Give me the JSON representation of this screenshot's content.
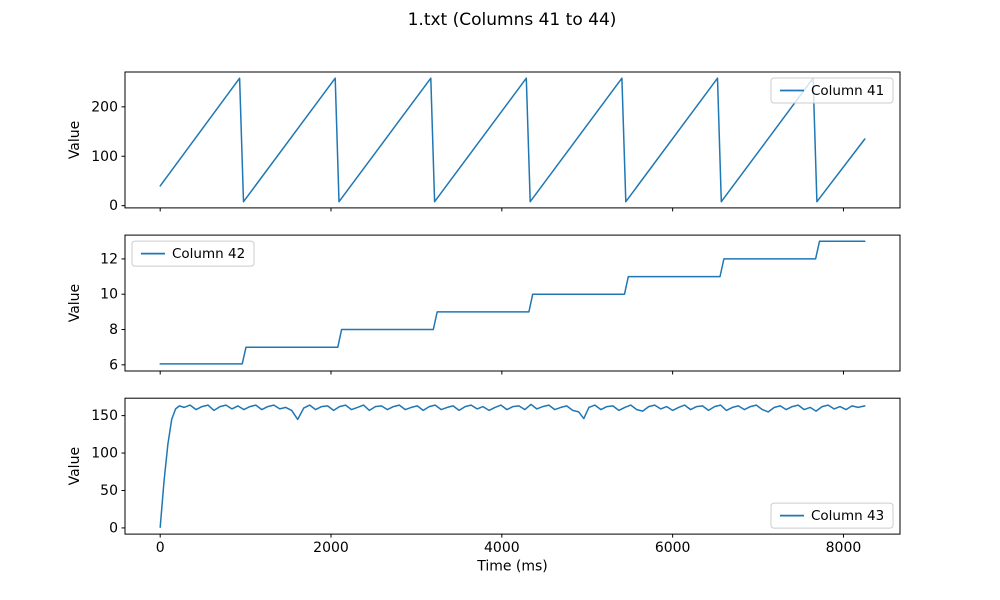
{
  "figure": {
    "title": "1.txt (Columns 41 to 44)",
    "line_color": "#1f77b4",
    "background": "#ffffff",
    "xlabel": "Time (ms)"
  },
  "chart_data": [
    {
      "type": "line",
      "legend": "Column 41",
      "legend_position": "upper-right",
      "ylabel": "Value",
      "xlabel": "",
      "xlim": [
        -412,
        8662
      ],
      "ylim": [
        -4.5,
        270.5
      ],
      "xticks": [
        0,
        2000,
        4000,
        6000,
        8000
      ],
      "show_xtick_labels": false,
      "yticks": [
        0,
        100,
        200
      ],
      "points": [
        [
          0,
          40
        ],
        [
          930,
          258
        ],
        [
          975,
          8
        ],
        [
          2049,
          258
        ],
        [
          2094,
          8
        ],
        [
          3168,
          258
        ],
        [
          3213,
          8
        ],
        [
          4287,
          258
        ],
        [
          4332,
          8
        ],
        [
          5406,
          258
        ],
        [
          5451,
          8
        ],
        [
          6525,
          258
        ],
        [
          6570,
          8
        ],
        [
          7644,
          258
        ],
        [
          7689,
          8
        ],
        [
          8250,
          135
        ]
      ]
    },
    {
      "type": "line",
      "legend": "Column 42",
      "legend_position": "upper-left",
      "ylabel": "Value",
      "xlabel": "",
      "xlim": [
        -412,
        8662
      ],
      "ylim": [
        5.65,
        13.35
      ],
      "xticks": [
        0,
        2000,
        4000,
        6000,
        8000
      ],
      "show_xtick_labels": false,
      "yticks": [
        6,
        8,
        10,
        12
      ],
      "points": [
        [
          0,
          6.05
        ],
        [
          960,
          6.05
        ],
        [
          1005,
          7
        ],
        [
          2079,
          7
        ],
        [
          2124,
          8
        ],
        [
          3198,
          8
        ],
        [
          3243,
          9
        ],
        [
          4317,
          9
        ],
        [
          4362,
          10
        ],
        [
          5436,
          10
        ],
        [
          5481,
          11
        ],
        [
          6555,
          11
        ],
        [
          6600,
          12
        ],
        [
          7674,
          12
        ],
        [
          7719,
          13
        ],
        [
          8250,
          13
        ]
      ]
    },
    {
      "type": "line",
      "legend": "Column 43",
      "legend_position": "lower-right",
      "ylabel": "Value",
      "xlabel": "Time (ms)",
      "xlim": [
        -412,
        8662
      ],
      "ylim": [
        -8.25,
        173.25
      ],
      "xticks": [
        0,
        2000,
        4000,
        6000,
        8000
      ],
      "show_xtick_labels": true,
      "yticks": [
        0,
        50,
        100,
        150
      ],
      "points": [
        [
          0,
          1
        ],
        [
          45,
          62
        ],
        [
          90,
          112
        ],
        [
          135,
          145
        ],
        [
          180,
          159
        ],
        [
          225,
          163
        ],
        [
          280,
          161
        ],
        [
          350,
          164
        ],
        [
          420,
          158
        ],
        [
          490,
          162
        ],
        [
          560,
          164
        ],
        [
          630,
          157
        ],
        [
          700,
          162
        ],
        [
          770,
          164
        ],
        [
          840,
          159
        ],
        [
          910,
          163
        ],
        [
          980,
          158
        ],
        [
          1050,
          162
        ],
        [
          1120,
          164
        ],
        [
          1190,
          158
        ],
        [
          1260,
          162
        ],
        [
          1330,
          164
        ],
        [
          1400,
          159
        ],
        [
          1470,
          161
        ],
        [
          1540,
          157
        ],
        [
          1610,
          145
        ],
        [
          1680,
          160
        ],
        [
          1750,
          164
        ],
        [
          1820,
          158
        ],
        [
          1890,
          162
        ],
        [
          1960,
          163
        ],
        [
          2030,
          157
        ],
        [
          2100,
          162
        ],
        [
          2170,
          164
        ],
        [
          2240,
          158
        ],
        [
          2310,
          161
        ],
        [
          2380,
          164
        ],
        [
          2450,
          157
        ],
        [
          2520,
          162
        ],
        [
          2590,
          163
        ],
        [
          2660,
          158
        ],
        [
          2730,
          162
        ],
        [
          2800,
          164
        ],
        [
          2870,
          158
        ],
        [
          2940,
          161
        ],
        [
          3010,
          163
        ],
        [
          3080,
          157
        ],
        [
          3150,
          162
        ],
        [
          3220,
          164
        ],
        [
          3290,
          158
        ],
        [
          3360,
          161
        ],
        [
          3430,
          163
        ],
        [
          3500,
          157
        ],
        [
          3570,
          162
        ],
        [
          3640,
          164
        ],
        [
          3710,
          159
        ],
        [
          3780,
          162
        ],
        [
          3850,
          157
        ],
        [
          3920,
          161
        ],
        [
          3990,
          164
        ],
        [
          4060,
          158
        ],
        [
          4130,
          162
        ],
        [
          4200,
          163
        ],
        [
          4270,
          158
        ],
        [
          4340,
          165
        ],
        [
          4410,
          159
        ],
        [
          4480,
          162
        ],
        [
          4550,
          164
        ],
        [
          4620,
          158
        ],
        [
          4690,
          161
        ],
        [
          4760,
          163
        ],
        [
          4830,
          157
        ],
        [
          4900,
          155
        ],
        [
          4960,
          146
        ],
        [
          5020,
          161
        ],
        [
          5090,
          164
        ],
        [
          5160,
          158
        ],
        [
          5230,
          162
        ],
        [
          5300,
          163
        ],
        [
          5370,
          157
        ],
        [
          5440,
          161
        ],
        [
          5510,
          164
        ],
        [
          5580,
          158
        ],
        [
          5650,
          156
        ],
        [
          5720,
          162
        ],
        [
          5790,
          164
        ],
        [
          5860,
          159
        ],
        [
          5930,
          162
        ],
        [
          6000,
          157
        ],
        [
          6070,
          161
        ],
        [
          6140,
          164
        ],
        [
          6210,
          158
        ],
        [
          6280,
          162
        ],
        [
          6350,
          163
        ],
        [
          6420,
          157
        ],
        [
          6490,
          162
        ],
        [
          6560,
          164
        ],
        [
          6630,
          157
        ],
        [
          6700,
          161
        ],
        [
          6770,
          163
        ],
        [
          6840,
          158
        ],
        [
          6910,
          162
        ],
        [
          6980,
          164
        ],
        [
          7050,
          158
        ],
        [
          7120,
          155
        ],
        [
          7190,
          161
        ],
        [
          7260,
          163
        ],
        [
          7330,
          158
        ],
        [
          7400,
          162
        ],
        [
          7470,
          164
        ],
        [
          7540,
          158
        ],
        [
          7610,
          161
        ],
        [
          7680,
          156
        ],
        [
          7750,
          162
        ],
        [
          7820,
          164
        ],
        [
          7890,
          159
        ],
        [
          7960,
          162
        ],
        [
          8030,
          158
        ],
        [
          8100,
          163
        ],
        [
          8170,
          161
        ],
        [
          8250,
          163
        ]
      ]
    }
  ]
}
